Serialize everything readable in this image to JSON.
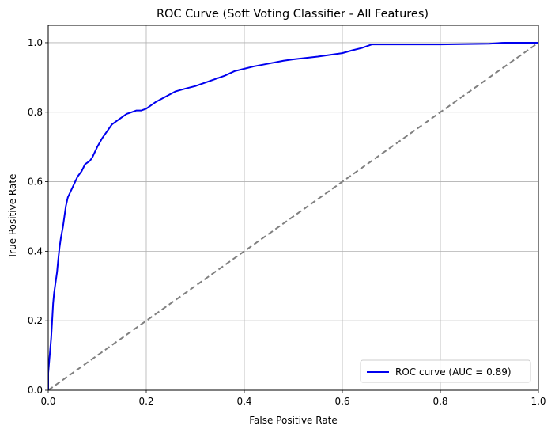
{
  "chart_data": {
    "type": "line",
    "title": "ROC Curve (Soft Voting Classifier - All Features)",
    "xlabel": "False Positive Rate",
    "ylabel": "True Positive Rate",
    "xlim": [
      0.0,
      1.0
    ],
    "ylim": [
      0.0,
      1.05
    ],
    "xticks": [
      "0.0",
      "0.2",
      "0.4",
      "0.6",
      "0.8",
      "1.0"
    ],
    "yticks": [
      "0.0",
      "0.2",
      "0.4",
      "0.6",
      "0.8",
      "1.0"
    ],
    "xtick_values": [
      0.0,
      0.2,
      0.4,
      0.6,
      0.8,
      1.0
    ],
    "ytick_values": [
      0.0,
      0.2,
      0.4,
      0.6,
      0.8,
      1.0
    ],
    "grid": true,
    "legend_position": "bottom-right",
    "series": [
      {
        "name": "ROC curve (AUC = 0.89)",
        "color": "#0000ee",
        "style": "solid",
        "x": [
          0.0,
          0.0,
          0.003,
          0.006,
          0.008,
          0.01,
          0.012,
          0.015,
          0.018,
          0.02,
          0.023,
          0.026,
          0.03,
          0.033,
          0.036,
          0.04,
          0.045,
          0.05,
          0.055,
          0.06,
          0.068,
          0.075,
          0.085,
          0.09,
          0.1,
          0.11,
          0.12,
          0.13,
          0.14,
          0.15,
          0.16,
          0.17,
          0.18,
          0.19,
          0.2,
          0.22,
          0.24,
          0.26,
          0.28,
          0.3,
          0.32,
          0.34,
          0.36,
          0.38,
          0.4,
          0.42,
          0.45,
          0.48,
          0.5,
          0.55,
          0.6,
          0.62,
          0.64,
          0.66,
          0.7,
          0.8,
          0.9,
          0.93,
          1.0
        ],
        "y": [
          0.0,
          0.05,
          0.1,
          0.15,
          0.2,
          0.25,
          0.28,
          0.31,
          0.34,
          0.37,
          0.41,
          0.44,
          0.47,
          0.5,
          0.53,
          0.555,
          0.57,
          0.585,
          0.6,
          0.615,
          0.63,
          0.65,
          0.66,
          0.67,
          0.7,
          0.725,
          0.745,
          0.765,
          0.775,
          0.785,
          0.795,
          0.8,
          0.805,
          0.805,
          0.81,
          0.83,
          0.845,
          0.86,
          0.868,
          0.875,
          0.885,
          0.895,
          0.905,
          0.918,
          0.925,
          0.932,
          0.94,
          0.948,
          0.952,
          0.96,
          0.97,
          0.978,
          0.985,
          0.995,
          0.995,
          0.995,
          0.997,
          1.0,
          1.0
        ]
      },
      {
        "name": "",
        "color": "#808080",
        "style": "dashed",
        "x": [
          0.0,
          1.0
        ],
        "y": [
          0.0,
          1.0
        ]
      }
    ]
  }
}
